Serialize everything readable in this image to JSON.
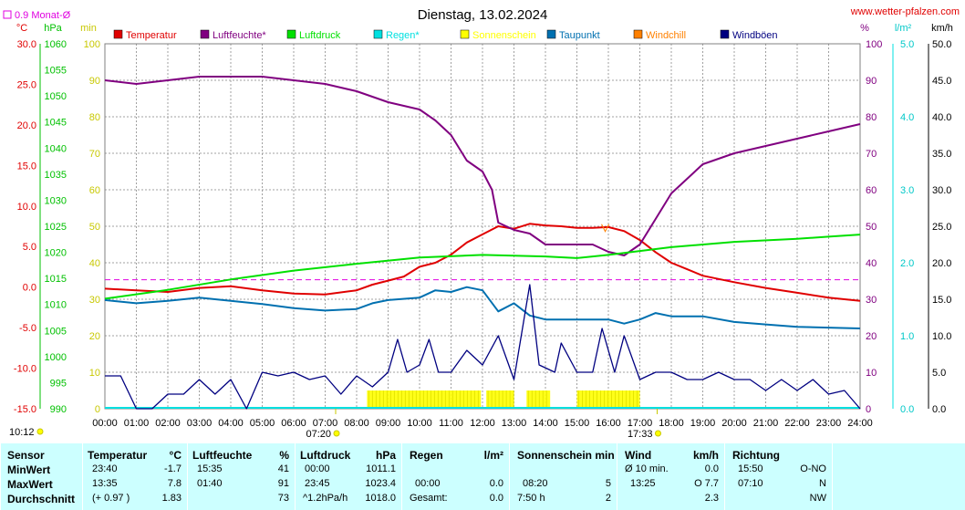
{
  "title": "Dienstag, 13.02.2024",
  "site": "www.wetter-pfalzen.com",
  "month_avg_label": "0.9 Monat-Ø",
  "units": {
    "temp": "°C",
    "hpa": "hPa",
    "min": "min",
    "pct": "%",
    "rain": "l/m²",
    "wind": "km/h"
  },
  "axes": {
    "temp_ticks": [
      "30.0",
      "25.0",
      "20.0",
      "15.0",
      "10.0",
      "5.0",
      "0.0",
      "-5.0",
      "-10.0",
      "-15.0"
    ],
    "hpa_ticks": [
      "1060",
      "1055",
      "1050",
      "1045",
      "1040",
      "1035",
      "1030",
      "1025",
      "1020",
      "1015",
      "1010",
      "1005",
      "1000",
      "995",
      "990"
    ],
    "min_ticks": [
      "100",
      "90",
      "80",
      "70",
      "60",
      "50",
      "40",
      "30",
      "20",
      "10",
      "0"
    ],
    "pct_ticks": [
      "100",
      "90",
      "80",
      "70",
      "60",
      "50",
      "40",
      "30",
      "20",
      "10",
      "0"
    ],
    "rain_ticks": [
      "5.0",
      "4.0",
      "3.0",
      "2.0",
      "1.0",
      "0.0"
    ],
    "wind_ticks": [
      "50.0",
      "45.0",
      "40.0",
      "35.0",
      "30.0",
      "25.0",
      "20.0",
      "15.0",
      "10.0",
      "5.0",
      "0.0"
    ],
    "time_ticks": [
      "00:00",
      "01:00",
      "02:00",
      "03:00",
      "04:00",
      "05:00",
      "06:00",
      "07:00",
      "08:00",
      "09:00",
      "10:00",
      "11:00",
      "12:00",
      "13:00",
      "14:00",
      "15:00",
      "16:00",
      "17:00",
      "18:00",
      "19:00",
      "20:00",
      "21:00",
      "22:00",
      "23:00",
      "24:00"
    ]
  },
  "legend": [
    {
      "label": "Temperatur",
      "color": "#e00000"
    },
    {
      "label": "Luftfeuchte*",
      "color": "#800080"
    },
    {
      "label": "Luftdruck",
      "color": "#00e000"
    },
    {
      "label": "Regen*",
      "color": "#00e0e0"
    },
    {
      "label": "Sonnenschein",
      "color": "#ffff00"
    },
    {
      "label": "Taupunkt",
      "color": "#0070b0"
    },
    {
      "label": "Windchill",
      "color": "#ff8000"
    },
    {
      "label": "Windböen",
      "color": "#000080"
    }
  ],
  "sun": {
    "sunrise": "07:20",
    "sunset": "17:33",
    "left_time": "10:12"
  },
  "chart_data": {
    "type": "line",
    "x_range_hours": [
      0,
      24
    ],
    "y_ranges": {
      "temperature_c": [
        -15,
        30
      ],
      "pressure_hpa": [
        990,
        1060
      ],
      "humidity_pct": [
        0,
        100
      ],
      "sunshine_min": [
        0,
        100
      ],
      "rain_lm2": [
        0,
        5
      ],
      "wind_kmh": [
        0,
        50
      ]
    },
    "month_avg_temperature": 0.9,
    "series": [
      {
        "name": "Temperatur",
        "color": "#e00000",
        "axis": "temp",
        "points": [
          [
            0,
            -0.2
          ],
          [
            1,
            -0.4
          ],
          [
            2,
            -0.6
          ],
          [
            3,
            -0.1
          ],
          [
            4,
            0.1
          ],
          [
            5,
            -0.4
          ],
          [
            6,
            -0.8
          ],
          [
            7,
            -0.9
          ],
          [
            8,
            -0.4
          ],
          [
            8.5,
            0.3
          ],
          [
            9,
            0.8
          ],
          [
            9.5,
            1.3
          ],
          [
            10,
            2.5
          ],
          [
            10.5,
            3.0
          ],
          [
            11,
            4.0
          ],
          [
            11.5,
            5.5
          ],
          [
            12,
            6.5
          ],
          [
            12.5,
            7.5
          ],
          [
            13,
            7.2
          ],
          [
            13.5,
            7.8
          ],
          [
            14,
            7.6
          ],
          [
            14.5,
            7.5
          ],
          [
            15,
            7.3
          ],
          [
            15.5,
            7.3
          ],
          [
            16,
            7.4
          ],
          [
            16.5,
            6.9
          ],
          [
            17,
            5.8
          ],
          [
            17.5,
            4.3
          ],
          [
            18,
            3.0
          ],
          [
            18.5,
            2.2
          ],
          [
            19,
            1.4
          ],
          [
            20,
            0.6
          ],
          [
            21,
            -0.1
          ],
          [
            22,
            -0.7
          ],
          [
            23,
            -1.3
          ],
          [
            24,
            -1.7
          ]
        ]
      },
      {
        "name": "Luftfeuchte*",
        "color": "#800080",
        "axis": "pct",
        "points": [
          [
            0,
            90
          ],
          [
            1,
            89
          ],
          [
            2,
            90
          ],
          [
            3,
            91
          ],
          [
            4,
            91
          ],
          [
            5,
            91
          ],
          [
            6,
            90
          ],
          [
            7,
            89
          ],
          [
            8,
            87
          ],
          [
            9,
            84
          ],
          [
            10,
            82
          ],
          [
            10.5,
            79
          ],
          [
            11,
            75
          ],
          [
            11.5,
            68
          ],
          [
            12,
            65
          ],
          [
            12.3,
            60
          ],
          [
            12.5,
            51
          ],
          [
            13,
            49
          ],
          [
            13.5,
            48
          ],
          [
            14,
            45
          ],
          [
            14.5,
            45
          ],
          [
            15,
            45
          ],
          [
            15.5,
            45
          ],
          [
            16,
            43
          ],
          [
            16.5,
            42
          ],
          [
            17,
            45
          ],
          [
            17.5,
            52
          ],
          [
            18,
            59
          ],
          [
            18.5,
            63
          ],
          [
            19,
            67
          ],
          [
            20,
            70
          ],
          [
            21,
            72
          ],
          [
            22,
            74
          ],
          [
            23,
            76
          ],
          [
            24,
            78
          ]
        ]
      },
      {
        "name": "Luftdruck",
        "color": "#00e000",
        "axis": "hpa",
        "points": [
          [
            0,
            1011.1
          ],
          [
            2,
            1012.8
          ],
          [
            4,
            1014.8
          ],
          [
            6,
            1016.5
          ],
          [
            8,
            1017.8
          ],
          [
            10,
            1019.0
          ],
          [
            12,
            1019.5
          ],
          [
            14,
            1019.2
          ],
          [
            15,
            1018.9
          ],
          [
            16,
            1019.5
          ],
          [
            18,
            1021.0
          ],
          [
            20,
            1022.0
          ],
          [
            22,
            1022.6
          ],
          [
            23,
            1023.0
          ],
          [
            24,
            1023.4
          ]
        ]
      },
      {
        "name": "Taupunkt",
        "color": "#0070b0",
        "axis": "temp",
        "points": [
          [
            0,
            -1.6
          ],
          [
            1,
            -2.0
          ],
          [
            2,
            -1.7
          ],
          [
            3,
            -1.3
          ],
          [
            4,
            -1.7
          ],
          [
            5,
            -2.1
          ],
          [
            6,
            -2.6
          ],
          [
            7,
            -2.9
          ],
          [
            8,
            -2.7
          ],
          [
            8.5,
            -2.0
          ],
          [
            9,
            -1.6
          ],
          [
            10,
            -1.3
          ],
          [
            10.5,
            -0.4
          ],
          [
            11,
            -0.6
          ],
          [
            11.5,
            0.0
          ],
          [
            12,
            -0.4
          ],
          [
            12.5,
            -3.0
          ],
          [
            13,
            -2.0
          ],
          [
            13.5,
            -3.5
          ],
          [
            14,
            -4.0
          ],
          [
            15,
            -4.0
          ],
          [
            15.5,
            -4.0
          ],
          [
            16,
            -4.0
          ],
          [
            16.5,
            -4.5
          ],
          [
            17,
            -4.0
          ],
          [
            17.5,
            -3.2
          ],
          [
            18,
            -3.6
          ],
          [
            19,
            -3.6
          ],
          [
            20,
            -4.3
          ],
          [
            21,
            -4.6
          ],
          [
            22,
            -4.9
          ],
          [
            23,
            -5.0
          ],
          [
            24,
            -5.1
          ]
        ]
      },
      {
        "name": "Windböen",
        "color": "#000080",
        "axis": "wind",
        "points": [
          [
            0,
            4.5
          ],
          [
            0.5,
            4.5
          ],
          [
            1,
            0
          ],
          [
            1.5,
            0
          ],
          [
            2,
            2
          ],
          [
            2.5,
            2
          ],
          [
            3,
            4
          ],
          [
            3.5,
            2
          ],
          [
            4,
            4
          ],
          [
            4.5,
            0
          ],
          [
            5,
            5
          ],
          [
            5.5,
            4.5
          ],
          [
            6,
            5
          ],
          [
            6.5,
            4
          ],
          [
            7,
            4.5
          ],
          [
            7.5,
            2
          ],
          [
            8,
            4.5
          ],
          [
            8.5,
            3
          ],
          [
            9,
            5
          ],
          [
            9.3,
            9.5
          ],
          [
            9.6,
            5
          ],
          [
            10,
            6
          ],
          [
            10.3,
            9.5
          ],
          [
            10.6,
            5
          ],
          [
            11,
            5
          ],
          [
            11.5,
            8
          ],
          [
            12,
            6
          ],
          [
            12.5,
            10
          ],
          [
            13,
            4
          ],
          [
            13.5,
            17
          ],
          [
            13.8,
            6
          ],
          [
            14.3,
            5
          ],
          [
            14.5,
            9
          ],
          [
            15,
            5
          ],
          [
            15.5,
            5
          ],
          [
            15.8,
            11
          ],
          [
            16.2,
            5
          ],
          [
            16.5,
            10
          ],
          [
            17,
            4
          ],
          [
            17.5,
            5
          ],
          [
            18,
            5
          ],
          [
            18.5,
            4
          ],
          [
            19,
            4
          ],
          [
            19.5,
            5
          ],
          [
            20,
            4
          ],
          [
            20.5,
            4
          ],
          [
            21,
            2.5
          ],
          [
            21.5,
            4
          ],
          [
            22,
            2.5
          ],
          [
            22.5,
            4
          ],
          [
            23,
            2
          ],
          [
            23.5,
            2.5
          ],
          [
            24,
            0
          ]
        ]
      }
    ],
    "sunshine_intervals_h": [
      [
        8.33,
        11.95
      ],
      [
        12.12,
        13.0
      ],
      [
        13.4,
        14.15
      ],
      [
        15.0,
        17.0
      ]
    ]
  },
  "stats": {
    "row_labels": [
      "Sensor",
      "MinWert",
      "MaxWert",
      "Durchschnitt"
    ],
    "temperatur": {
      "title": "Temperatur",
      "unit": "°C",
      "rows": [
        [
          "23:40",
          "-1.7"
        ],
        [
          "13:35",
          "7.8"
        ],
        [
          "(+ 0.97 )",
          "1.83"
        ]
      ]
    },
    "luftfeuchte": {
      "title": "Luftfeuchte",
      "unit": "%",
      "rows": [
        [
          "15:35",
          "41"
        ],
        [
          "01:40",
          "91"
        ],
        [
          "",
          "73"
        ]
      ]
    },
    "luftdruck": {
      "title": "Luftdruck",
      "unit": "hPa",
      "rows": [
        [
          "00:00",
          "1011.1"
        ],
        [
          "23:45",
          "1023.4"
        ],
        [
          "^1.2hPa/h",
          "1018.0"
        ]
      ]
    },
    "regen": {
      "title": "Regen",
      "unit": "l/m²",
      "rows": [
        [
          "",
          ""
        ],
        [
          "00:00",
          "0.0"
        ],
        [
          "Gesamt:",
          "0.0"
        ]
      ]
    },
    "sonne": {
      "title": "Sonnenschein min",
      "rows": [
        [
          "",
          ""
        ],
        [
          "08:20",
          "5"
        ],
        [
          "7:50 h",
          "2"
        ]
      ]
    },
    "wind": {
      "title": "Wind",
      "unit": "km/h",
      "rows": [
        [
          "Ø 10 min.",
          "0.0"
        ],
        [
          "13:25",
          "O 7.7"
        ],
        [
          "",
          "2.3"
        ]
      ]
    },
    "richtung": {
      "title": "Richtung",
      "rows": [
        [
          "15:50",
          "O-NO"
        ],
        [
          "07:10",
          "N"
        ],
        [
          "",
          "NW"
        ]
      ]
    }
  }
}
